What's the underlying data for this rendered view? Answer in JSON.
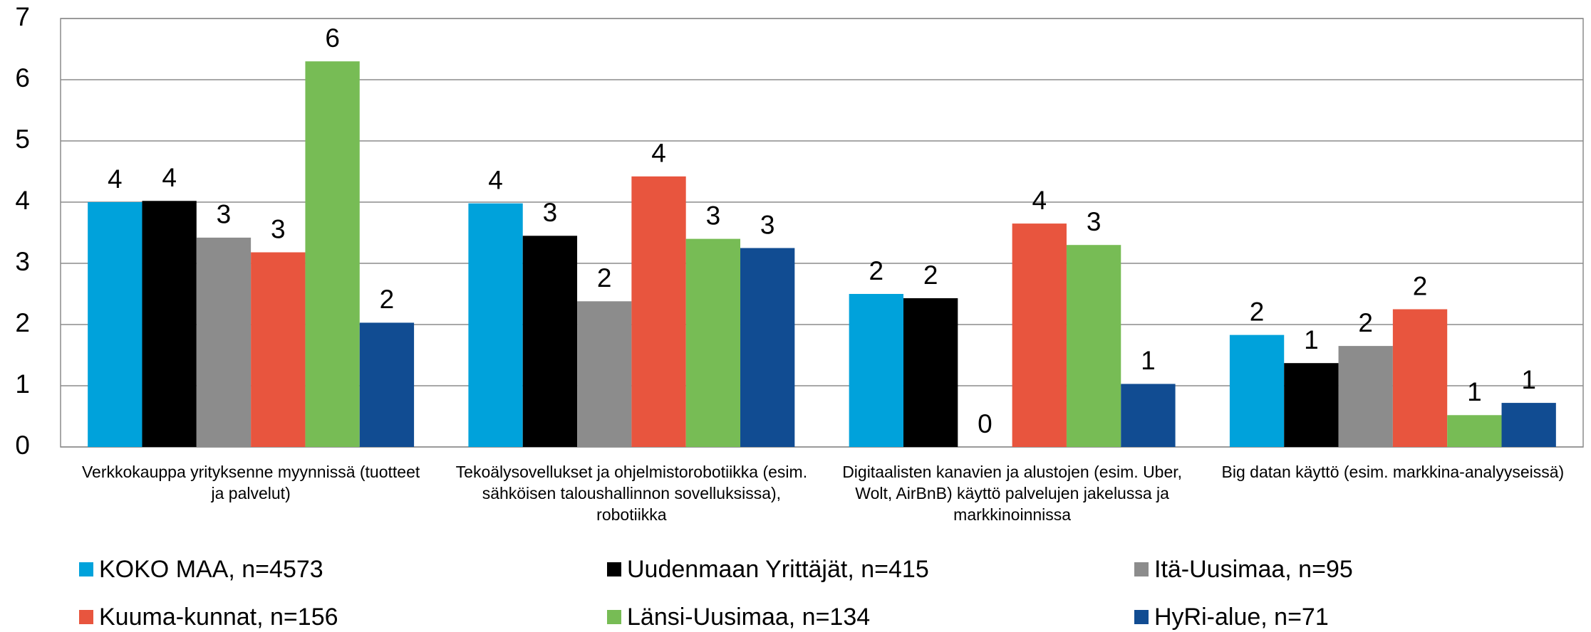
{
  "chart_data": {
    "type": "bar",
    "categories": [
      "Verkkokauppa yrityksenne myynnissä (tuotteet ja palvelut)",
      "Tekoälysovellukset ja ohjelmistorobotiikka (esim. sähköisen taloushallinnon sovelluksissa), robotiikka",
      "Digitaalisten kanavien ja alustojen (esim. Uber, Wolt, AirBnB) käyttö palvelujen jakelussa ja markkinoinnissa",
      "Big datan käyttö (esim. markkina-analyyseissä)"
    ],
    "series": [
      {
        "name": "KOKO MAA, n=4573",
        "color": "#00a2db",
        "values": [
          4.0,
          3.98,
          2.5,
          1.83
        ],
        "value_labels": [
          "4",
          "4",
          "2",
          "2"
        ]
      },
      {
        "name": "Uudenmaan Yrittäjät, n=415",
        "color": "#000000",
        "values": [
          4.02,
          3.45,
          2.43,
          1.37
        ],
        "value_labels": [
          "4",
          "3",
          "2",
          "1"
        ]
      },
      {
        "name": "Itä-Uusimaa, n=95",
        "color": "#8c8c8c",
        "values": [
          3.42,
          2.38,
          0,
          1.65
        ],
        "value_labels": [
          "3",
          "2",
          "0",
          "2"
        ]
      },
      {
        "name": "Kuuma-kunnat, n=156",
        "color": "#e8553e",
        "values": [
          3.18,
          4.42,
          3.65,
          2.25
        ],
        "value_labels": [
          "3",
          "4",
          "4",
          "2"
        ]
      },
      {
        "name": "Länsi-Uusimaa, n=134",
        "color": "#77bc55",
        "values": [
          6.3,
          3.4,
          3.3,
          0.52
        ],
        "value_labels": [
          "6",
          "3",
          "3",
          "1"
        ]
      },
      {
        "name": "HyRi-alue, n=71",
        "color": "#114c92",
        "values": [
          2.03,
          3.25,
          1.03,
          0.72
        ],
        "value_labels": [
          "2",
          "3",
          "1",
          "1"
        ]
      }
    ],
    "ylim": [
      0,
      7
    ],
    "yticks": [
      0,
      1,
      2,
      3,
      4,
      5,
      6,
      7
    ],
    "grid": true,
    "legend": "bottom"
  }
}
